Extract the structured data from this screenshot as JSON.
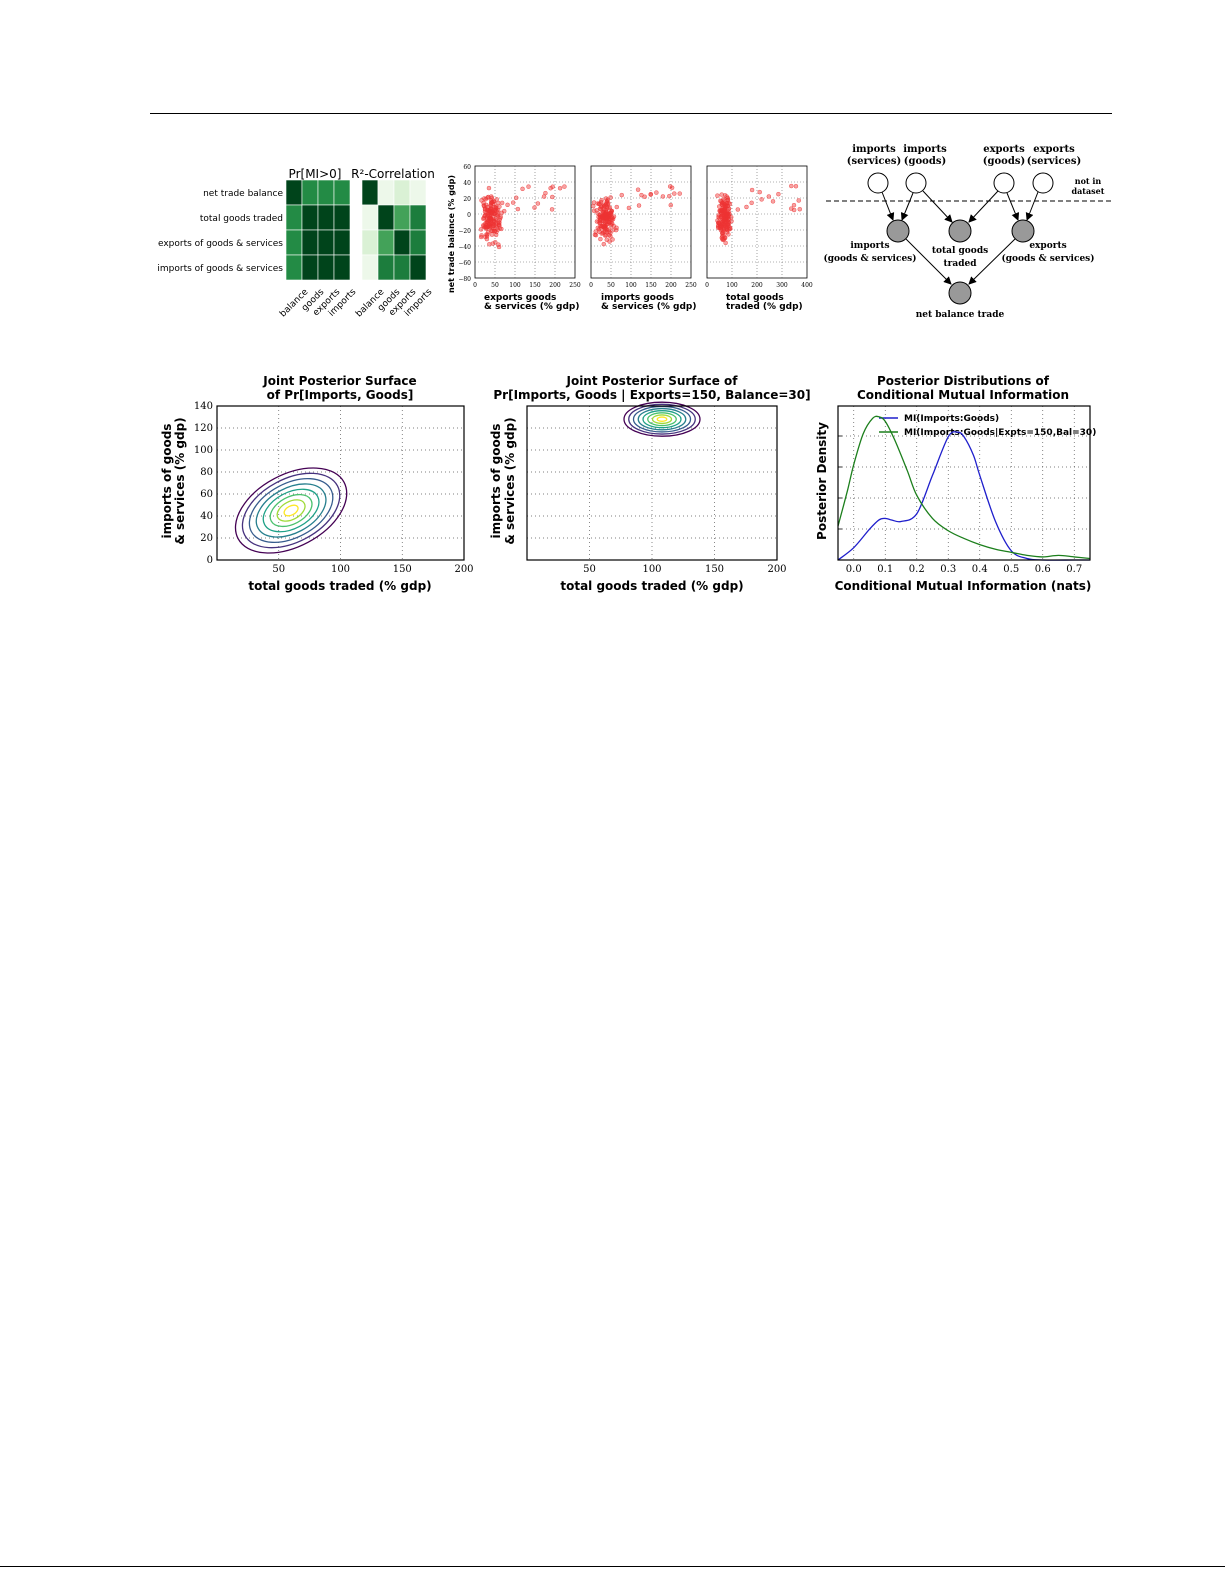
{
  "figure_a": {
    "heatmaps": {
      "rows": [
        "net trade balance",
        "total goods traded",
        "exports of goods & services",
        "imports of goods & services"
      ],
      "cols": [
        "balance",
        "goods",
        "exports",
        "imports"
      ],
      "panels": [
        {
          "title": "Pr[MI>0]",
          "values": [
            [
              1.0,
              0.75,
              0.75,
              0.75
            ],
            [
              0.75,
              1.0,
              1.0,
              1.0
            ],
            [
              0.75,
              1.0,
              1.0,
              1.0
            ],
            [
              0.75,
              1.0,
              1.0,
              1.0
            ]
          ]
        },
        {
          "title": "R²-Correlation",
          "values": [
            [
              1.0,
              0.05,
              0.15,
              0.05
            ],
            [
              0.05,
              1.0,
              0.65,
              0.8
            ],
            [
              0.15,
              0.65,
              1.0,
              0.8
            ],
            [
              0.05,
              0.8,
              0.8,
              1.0
            ]
          ]
        }
      ],
      "colormap": [
        "#f7fcf5",
        "#c7e9c0",
        "#74c476",
        "#238b45",
        "#00441b"
      ]
    }
  },
  "scatter_row": {
    "ylabel": "net trade balance (% gdp)",
    "y_ticks": [
      "60",
      "40",
      "20",
      "0",
      "−20",
      "−40",
      "−60",
      "−80"
    ],
    "color": "#ee3333",
    "panels": [
      {
        "xlabel": [
          "exports goods",
          "& services (% gdp)"
        ],
        "x_ticks": [
          "0",
          "50",
          "100",
          "150",
          "200",
          "250"
        ],
        "xlim": [
          0,
          250
        ]
      },
      {
        "xlabel": [
          "imports goods",
          "& services (% gdp)"
        ],
        "x_ticks": [
          "0",
          "50",
          "100",
          "150",
          "200",
          "250"
        ],
        "xlim": [
          0,
          250
        ]
      },
      {
        "xlabel": [
          "total goods",
          "traded (% gdp)"
        ],
        "x_ticks": [
          "0",
          "100",
          "200",
          "300",
          "400"
        ],
        "xlim": [
          0,
          400
        ]
      }
    ]
  },
  "network": {
    "top_nodes": [
      {
        "label": [
          "imports",
          "(services)"
        ]
      },
      {
        "label": [
          "imports",
          "(goods)"
        ]
      },
      {
        "label": [
          "exports",
          "(goods)"
        ]
      },
      {
        "label": [
          "exports",
          "(services)"
        ]
      }
    ],
    "not_in_dataset": [
      "not in",
      "dataset"
    ],
    "mid_nodes": [
      {
        "label": [
          "imports",
          "(goods & services)"
        ]
      },
      {
        "label": [
          "total goods",
          "traded"
        ]
      },
      {
        "label": [
          "exports",
          "(goods & services)"
        ]
      }
    ],
    "bottom_node": "net balance trade",
    "observed_fill": "#999999"
  },
  "chart_data": [
    {
      "type": "contour",
      "title": [
        "Joint Posterior Surface",
        "of Pr[Imports, Goods]"
      ],
      "xlabel": "total goods traded (% gdp)",
      "ylabel": [
        "imports of goods",
        "& services (% gdp)"
      ],
      "xlim": [
        0,
        200
      ],
      "ylim": [
        0,
        140
      ],
      "x_ticks": [
        50,
        100,
        150,
        200
      ],
      "y_ticks": [
        0,
        20,
        40,
        60,
        80,
        100,
        120,
        140
      ],
      "peak": [
        60,
        45
      ],
      "grid": true
    },
    {
      "type": "contour",
      "title": [
        "Joint Posterior Surface of",
        "Pr[Imports, Goods | Exports=150, Balance=30]"
      ],
      "xlabel": "total goods traded (% gdp)",
      "ylabel": [
        "imports of goods",
        "& services (% gdp)"
      ],
      "xlim": [
        0,
        200
      ],
      "ylim": [
        0,
        140
      ],
      "x_ticks": [
        50,
        100,
        150,
        200
      ],
      "peak": [
        108,
        128
      ],
      "grid": true
    },
    {
      "type": "line",
      "title": [
        "Posterior Distributions of",
        "Conditional Mutual Information"
      ],
      "xlabel": "Conditional Mutual Information (nats)",
      "ylabel": "Posterior Density",
      "xlim": [
        -0.05,
        0.75
      ],
      "x_ticks": [
        "0.0",
        "0.1",
        "0.2",
        "0.3",
        "0.4",
        "0.5",
        "0.6",
        "0.7"
      ],
      "legend": "top-right",
      "grid": true,
      "series": [
        {
          "name": "MI(Imports:Goods)",
          "color": "#1f1fcc",
          "x": [
            -0.05,
            0.0,
            0.05,
            0.08,
            0.1,
            0.12,
            0.15,
            0.2,
            0.25,
            0.3,
            0.33,
            0.35,
            0.38,
            0.4,
            0.45,
            0.5,
            0.55,
            0.6,
            0.7,
            0.75
          ],
          "y": [
            0.0,
            0.08,
            0.2,
            0.26,
            0.27,
            0.26,
            0.25,
            0.3,
            0.55,
            0.8,
            0.83,
            0.8,
            0.68,
            0.55,
            0.25,
            0.06,
            0.01,
            0.0,
            0.0,
            0.0
          ]
        },
        {
          "name": "MI(Imports:Goods|Expts=150,Bal=30)",
          "color": "#1c7f1c",
          "x": [
            -0.05,
            -0.02,
            0.0,
            0.03,
            0.06,
            0.08,
            0.1,
            0.13,
            0.17,
            0.2,
            0.25,
            0.3,
            0.35,
            0.4,
            0.45,
            0.5,
            0.55,
            0.6,
            0.65,
            0.7,
            0.75
          ],
          "y": [
            0.22,
            0.45,
            0.62,
            0.82,
            0.92,
            0.93,
            0.9,
            0.78,
            0.58,
            0.42,
            0.27,
            0.19,
            0.14,
            0.1,
            0.07,
            0.05,
            0.03,
            0.02,
            0.03,
            0.02,
            0.01
          ]
        }
      ]
    }
  ]
}
